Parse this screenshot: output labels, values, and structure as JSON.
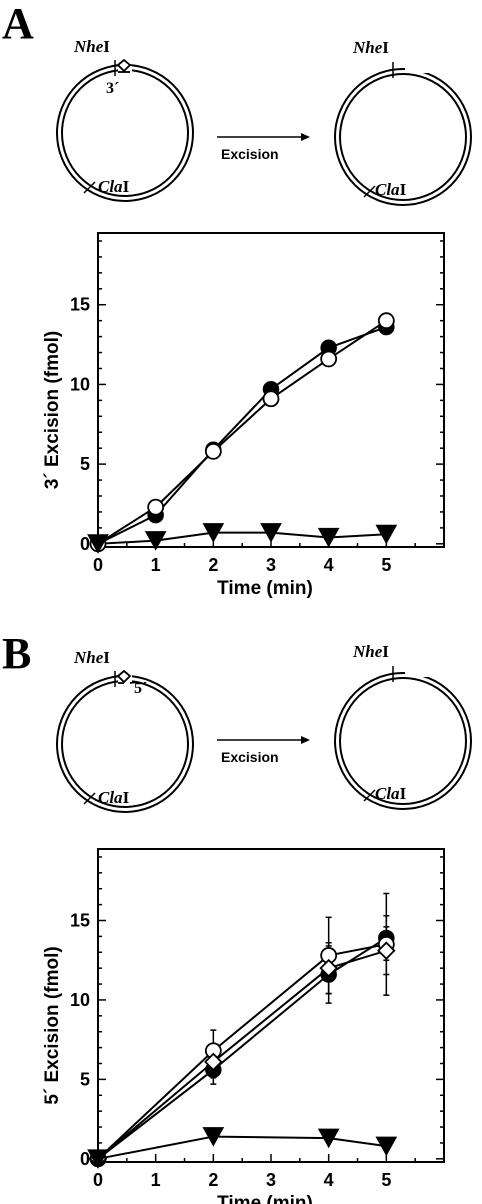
{
  "panels": [
    {
      "letter": "A",
      "schematic": {
        "site_top": {
          "italic": "Nhe",
          "roman": "I"
        },
        "site_bottom": {
          "italic": "Cla",
          "roman": "I"
        },
        "end_label": "3´",
        "arrow_label": "Excision"
      }
    },
    {
      "letter": "B",
      "schematic": {
        "site_top": {
          "italic": "Nhe",
          "roman": "I"
        },
        "site_bottom": {
          "italic": "Cla",
          "roman": "I"
        },
        "end_label": "5´",
        "arrow_label": "Excision"
      }
    }
  ],
  "chart_data": [
    {
      "type": "line",
      "panel": "A",
      "xlabel": "Time (min)",
      "ylabel": "3´ Excision (fmol)",
      "xlim": [
        0,
        6
      ],
      "ylim": [
        -0.2,
        19.5
      ],
      "xticks": [
        0,
        1,
        2,
        3,
        4,
        5
      ],
      "yticks": [
        0,
        5,
        10,
        15
      ],
      "grid": false,
      "series": [
        {
          "marker": "filled-circle",
          "x": [
            0,
            1,
            2,
            3,
            4,
            5
          ],
          "y": [
            0,
            1.8,
            5.9,
            9.7,
            12.3,
            13.6
          ]
        },
        {
          "marker": "open-circle",
          "x": [
            0,
            1,
            2,
            3,
            4,
            5
          ],
          "y": [
            0,
            2.3,
            5.8,
            9.1,
            11.6,
            14.0
          ]
        },
        {
          "marker": "filled-triangle-down",
          "x": [
            0,
            1,
            2,
            3,
            4,
            5
          ],
          "y": [
            0,
            0.2,
            0.7,
            0.7,
            0.4,
            0.6
          ]
        }
      ]
    },
    {
      "type": "line",
      "panel": "B",
      "xlabel": "Time (min)",
      "ylabel": "5´ Excision (fmol)",
      "xlim": [
        0,
        6
      ],
      "ylim": [
        -0.2,
        19.5
      ],
      "xticks": [
        0,
        1,
        2,
        3,
        4,
        5
      ],
      "yticks": [
        0,
        5,
        10,
        15
      ],
      "grid": false,
      "series": [
        {
          "marker": "filled-circle",
          "x": [
            0,
            2,
            4,
            5
          ],
          "y": [
            0,
            5.6,
            11.6,
            13.9
          ],
          "err": [
            0,
            0.9,
            1.8,
            1.4
          ]
        },
        {
          "marker": "open-circle",
          "x": [
            0,
            2,
            4,
            5
          ],
          "y": [
            0,
            6.8,
            12.8,
            13.5
          ],
          "err": [
            0,
            1.3,
            2.4,
            3.2
          ]
        },
        {
          "marker": "open-diamond",
          "x": [
            0,
            2,
            4,
            5
          ],
          "y": [
            0,
            6.1,
            12.0,
            13.1
          ],
          "err": [
            0,
            1.0,
            1.6,
            1.5
          ]
        },
        {
          "marker": "filled-triangle-down",
          "x": [
            0,
            2,
            4,
            5
          ],
          "y": [
            0,
            1.4,
            1.3,
            0.8
          ],
          "err": [
            0,
            0,
            0,
            0
          ]
        }
      ]
    }
  ]
}
